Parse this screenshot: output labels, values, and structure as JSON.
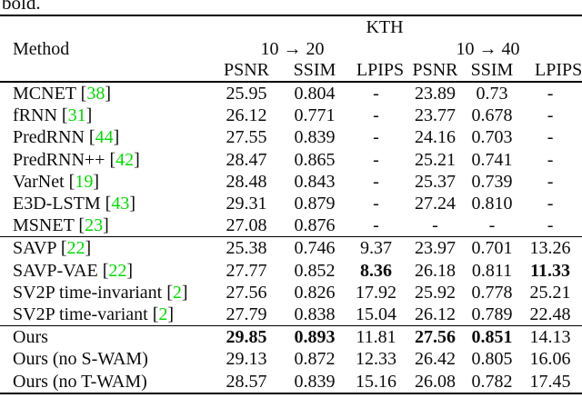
{
  "caption_fragment": "bold.",
  "punct": {
    "cite_open": "[",
    "cite_close": "]"
  },
  "colors": {
    "citation_green": "#00dc00",
    "text": "#0c0c0c",
    "rule": "#000000"
  },
  "table": {
    "dataset_header": "KTH",
    "method_header": "Method",
    "group_headers": [
      "10 → 20",
      "10 → 40"
    ],
    "metric_headers": [
      "PSNR",
      "SSIM",
      "LPIPS",
      "PSNR",
      "SSIM",
      "LPIPS"
    ],
    "rows": [
      {
        "method": "MCNET",
        "cite": "38",
        "values": [
          "25.95",
          "0.804",
          "-",
          "23.89",
          "0.73",
          "-"
        ],
        "bold": []
      },
      {
        "method": "fRNN",
        "cite": "31",
        "values": [
          "26.12",
          "0.771",
          "-",
          "23.77",
          "0.678",
          "-"
        ],
        "bold": []
      },
      {
        "method": "PredRNN",
        "cite": "44",
        "values": [
          "27.55",
          "0.839",
          "-",
          "24.16",
          "0.703",
          "-"
        ],
        "bold": []
      },
      {
        "method": "PredRNN++",
        "cite": "42",
        "values": [
          "28.47",
          "0.865",
          "-",
          "25.21",
          "0.741",
          "-"
        ],
        "bold": []
      },
      {
        "method": "VarNet",
        "cite": "19",
        "values": [
          "28.48",
          "0.843",
          "-",
          "25.37",
          "0.739",
          "-"
        ],
        "bold": []
      },
      {
        "method": "E3D-LSTM",
        "cite": "43",
        "values": [
          "29.31",
          "0.879",
          "-",
          "27.24",
          "0.810",
          "-"
        ],
        "bold": []
      },
      {
        "method": "MSNET",
        "cite": "23",
        "values": [
          "27.08",
          "0.876",
          "-",
          "-",
          "-",
          "-"
        ],
        "bold": []
      },
      {
        "method": "SAVP",
        "cite": "22",
        "values": [
          "25.38",
          "0.746",
          "9.37",
          "23.97",
          "0.701",
          "13.26"
        ],
        "bold": [],
        "rule_above": true
      },
      {
        "method": "SAVP-VAE",
        "cite": "22",
        "values": [
          "27.77",
          "0.852",
          "8.36",
          "26.18",
          "0.811",
          "11.33"
        ],
        "bold": [
          2,
          5
        ]
      },
      {
        "method": "SV2P time-invariant",
        "cite": "2",
        "values": [
          "27.56",
          "0.826",
          "17.92",
          "25.92",
          "0.778",
          "25.21"
        ],
        "bold": []
      },
      {
        "method": "SV2P time-variant",
        "cite": "2",
        "values": [
          "27.79",
          "0.838",
          "15.04",
          "26.12",
          "0.789",
          "22.48"
        ],
        "bold": []
      },
      {
        "method": "Ours",
        "cite": null,
        "values": [
          "29.85",
          "0.893",
          "11.81",
          "27.56",
          "0.851",
          "14.13"
        ],
        "bold": [
          0,
          1,
          3,
          4
        ],
        "rule_above": true
      },
      {
        "method": "Ours (no S-WAM)",
        "cite": null,
        "values": [
          "29.13",
          "0.872",
          "12.33",
          "26.42",
          "0.805",
          "16.06"
        ],
        "bold": []
      },
      {
        "method": "Ours (no T-WAM)",
        "cite": null,
        "values": [
          "28.57",
          "0.839",
          "15.16",
          "26.08",
          "0.782",
          "17.45"
        ],
        "bold": []
      }
    ]
  }
}
